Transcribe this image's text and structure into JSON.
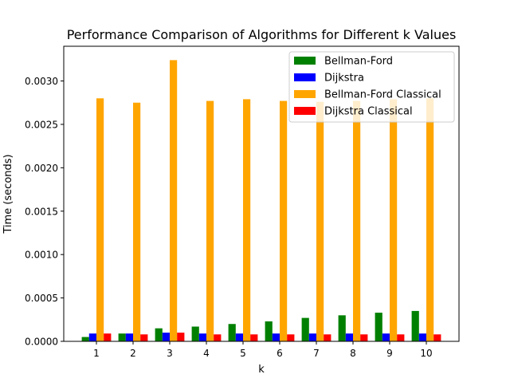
{
  "chart_data": {
    "type": "bar",
    "title": "Performance Comparison of Algorithms for Different k Values",
    "xlabel": "k",
    "ylabel": "Time (seconds)",
    "categories": [
      "1",
      "2",
      "3",
      "4",
      "5",
      "6",
      "7",
      "8",
      "9",
      "10"
    ],
    "ylim": [
      0,
      0.0034
    ],
    "yticks": [
      0.0,
      0.0005,
      0.001,
      0.0015,
      0.002,
      0.0025,
      0.003
    ],
    "ytick_labels": [
      "0.0000",
      "0.0005",
      "0.0010",
      "0.0015",
      "0.0020",
      "0.0025",
      "0.0030"
    ],
    "grid": false,
    "legend_position": "top-right",
    "series": [
      {
        "name": "Bellman-Ford",
        "color": "#008000",
        "values": [
          5e-05,
          9e-05,
          0.00015,
          0.00017,
          0.0002,
          0.00023,
          0.00027,
          0.0003,
          0.00033,
          0.00035
        ]
      },
      {
        "name": "Dijkstra",
        "color": "#0000ff",
        "values": [
          9e-05,
          9e-05,
          0.0001,
          9e-05,
          9e-05,
          9e-05,
          9e-05,
          9e-05,
          9e-05,
          9e-05
        ]
      },
      {
        "name": "Bellman-Ford Classical",
        "color": "#ffa500",
        "values": [
          0.0028,
          0.00275,
          0.00324,
          0.00277,
          0.00279,
          0.00277,
          0.00276,
          0.00277,
          0.00279,
          0.0028
        ]
      },
      {
        "name": "Dijkstra Classical",
        "color": "#ff0000",
        "values": [
          9e-05,
          8e-05,
          0.0001,
          8e-05,
          8e-05,
          8e-05,
          8e-05,
          8e-05,
          8e-05,
          8e-05
        ]
      }
    ]
  }
}
